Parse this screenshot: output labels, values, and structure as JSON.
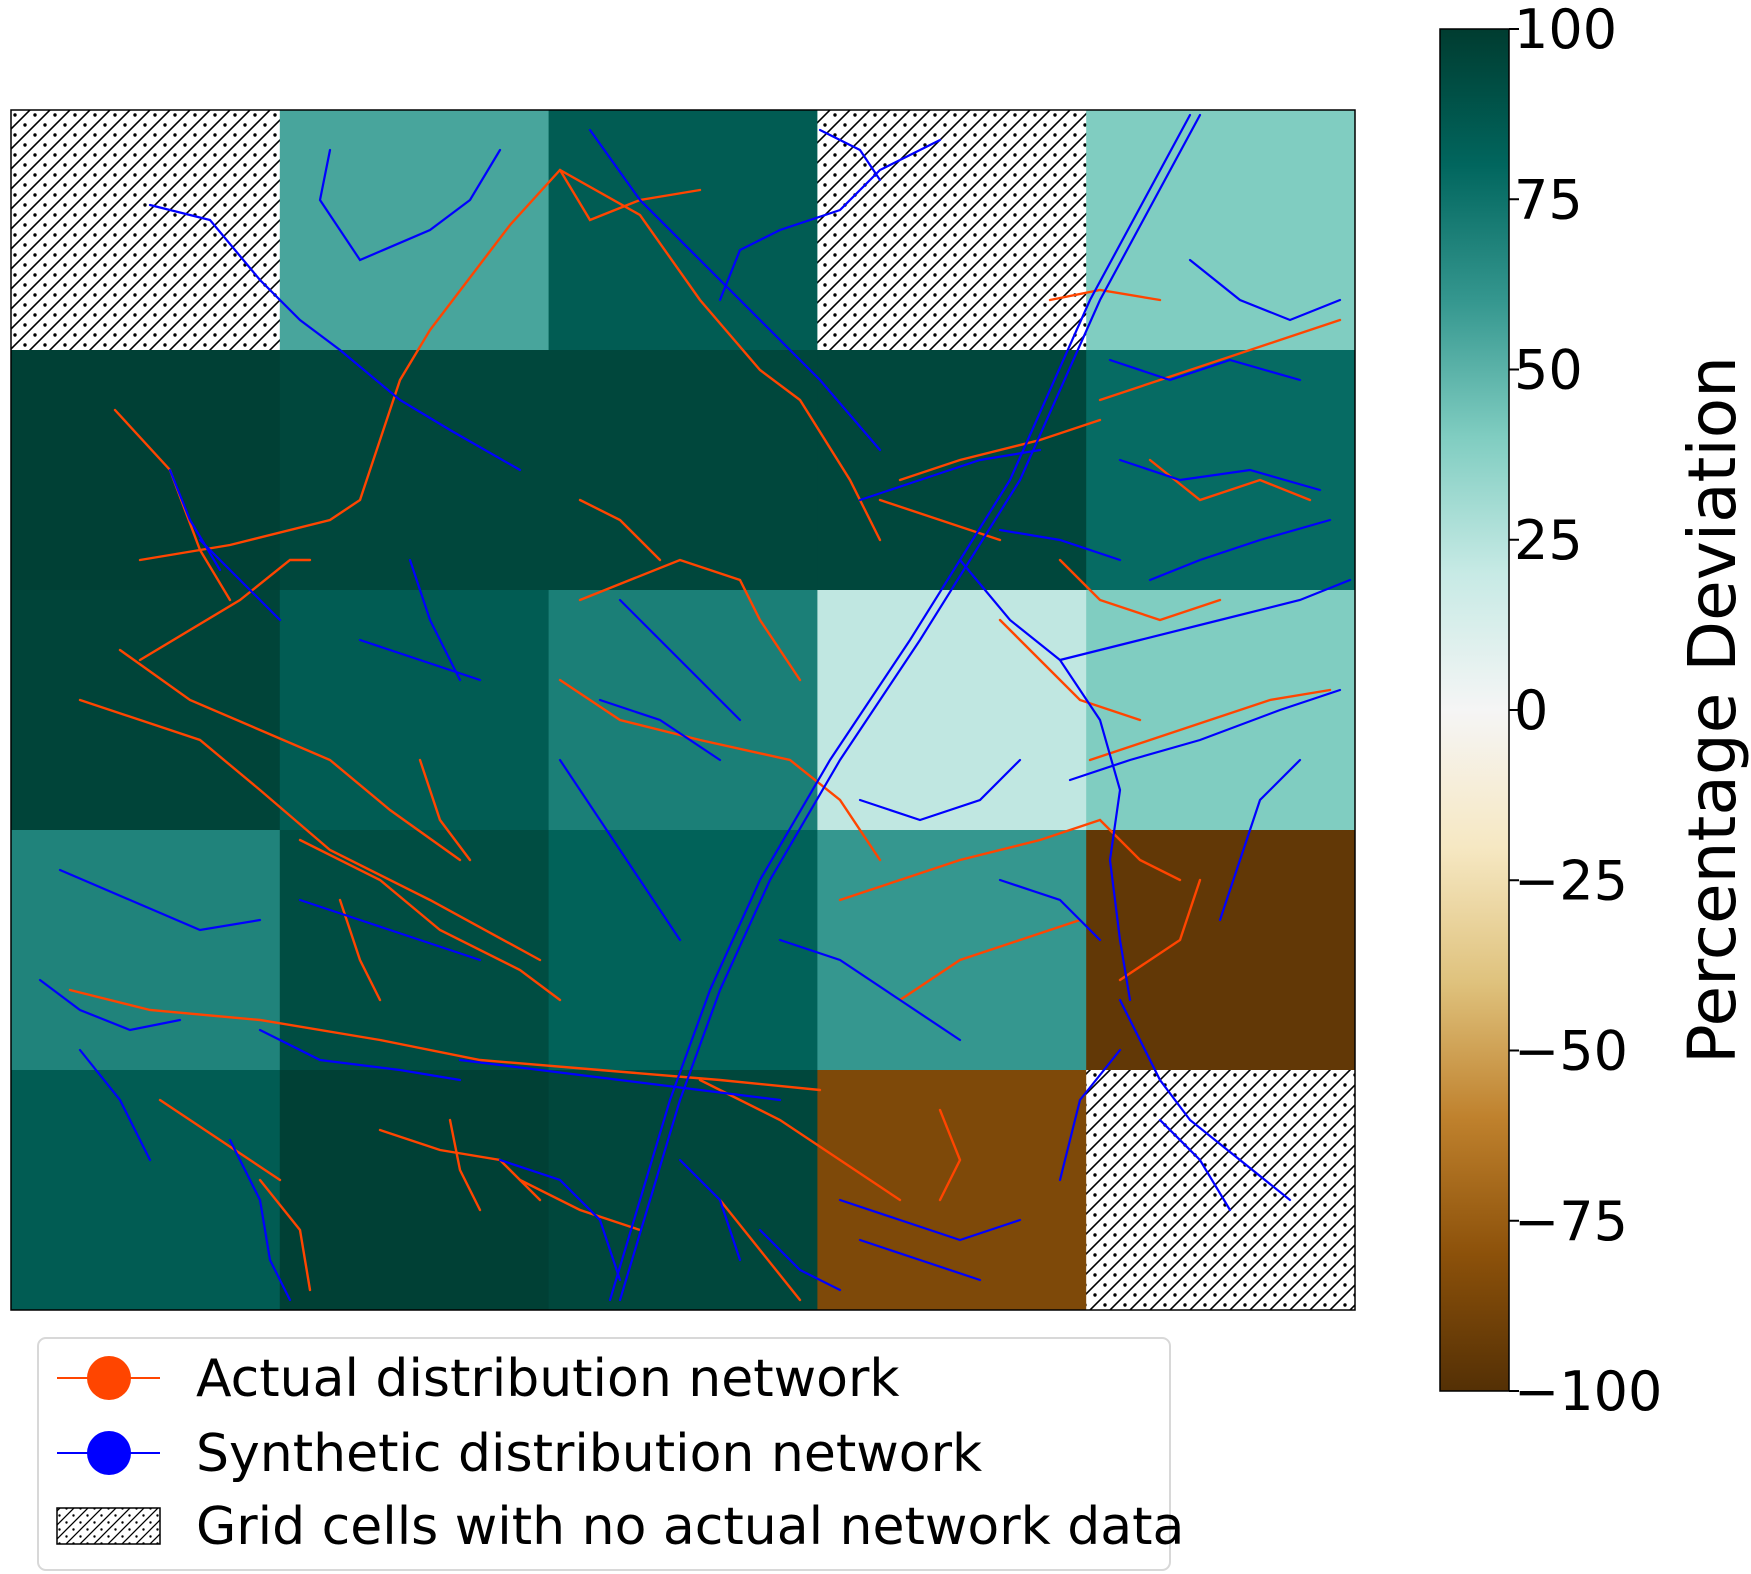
{
  "chart_data": {
    "type": "heatmap",
    "title": "",
    "grid": {
      "rows": 5,
      "cols": 5
    },
    "cells": [
      [
        null,
        55,
        85,
        null,
        40
      ],
      [
        98,
        95,
        95,
        95,
        78
      ],
      [
        96,
        85,
        70,
        22,
        40
      ],
      [
        68,
        92,
        82,
        60,
        -95
      ],
      [
        85,
        98,
        95,
        -85,
        null
      ]
    ],
    "colorbar": {
      "label": "Percentage Deviation",
      "range": [
        -100,
        100
      ],
      "ticks": [
        100,
        75,
        50,
        25,
        0,
        -25,
        -50,
        -75,
        -100
      ],
      "tick_labels": [
        "100",
        "75",
        "50",
        "25",
        "0",
        "−25",
        "−50",
        "−75",
        "−100"
      ],
      "colormap": "BrBG"
    },
    "legend": {
      "placement": "bottom-left",
      "entries": [
        {
          "label": "Actual distribution network",
          "color": "#ff4500",
          "marker": "circle-line"
        },
        {
          "label": "Synthetic distribution network",
          "color": "#0000ff",
          "marker": "circle-line"
        },
        {
          "label": "Grid cells with no actual network data",
          "color": "#000000",
          "marker": "hatch"
        }
      ]
    },
    "overlays": {
      "actual_network_color": "#ff4500",
      "synthetic_network_color": "#0000ff"
    }
  }
}
